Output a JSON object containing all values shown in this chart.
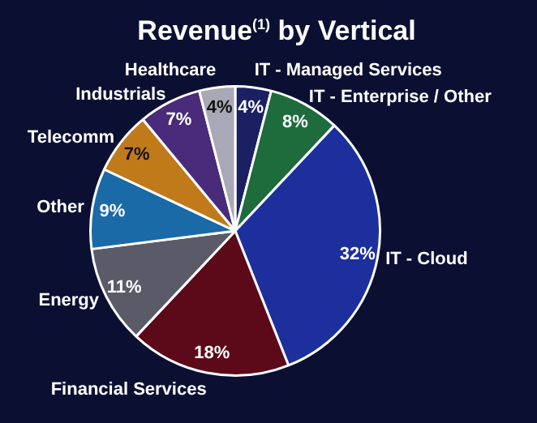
{
  "chart_data": {
    "type": "pie",
    "title": "Revenue$^{(1)}$ by Vertical",
    "categories": [
      "IT - Managed Services",
      "IT - Enterprise / Other",
      "IT - Cloud",
      "Financial Services",
      "Energy",
      "Other",
      "Telecomm",
      "Industrials",
      "Healthcare"
    ],
    "values": [
      4,
      8,
      32,
      18,
      11,
      9,
      7,
      7,
      4
    ],
    "value_labels": [
      "4%",
      "8%",
      "32%",
      "18%",
      "11%",
      "9%",
      "7%",
      "7%",
      "4%"
    ],
    "colors": [
      "#1a2062",
      "#1e6b3c",
      "#1c2f9c",
      "#5c0a1a",
      "#5a5a68",
      "#1a6aa8",
      "#c07a1a",
      "#4a2a7a",
      "#a8a8b6"
    ],
    "legend": false
  }
}
